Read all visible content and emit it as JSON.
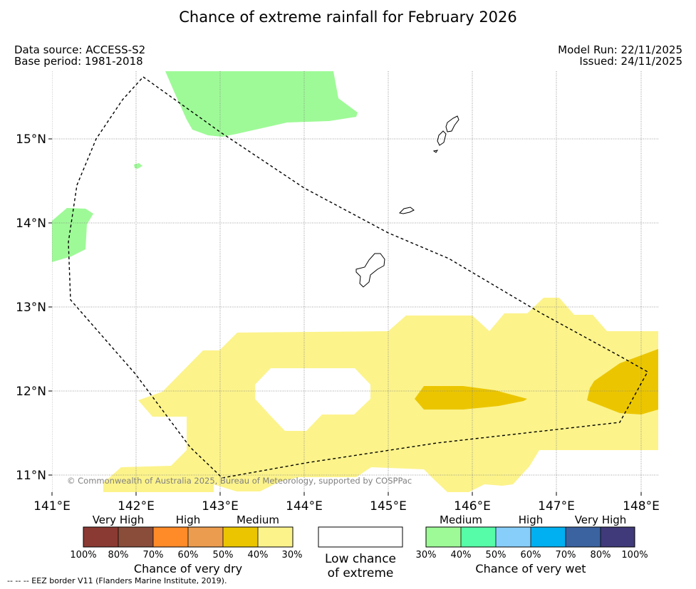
{
  "header": {
    "title": "Chance of extreme rainfall for February 2026",
    "data_source": "Data source: ACCESS-S2",
    "base_period": "Base period: 1981-2018",
    "model_run": "Model Run: 22/11/2025",
    "issued": "Issued: 24/11/2025"
  },
  "map": {
    "lon_ticks": [
      "141°E",
      "142°E",
      "143°E",
      "144°E",
      "145°E",
      "146°E",
      "147°E",
      "148°E"
    ],
    "lat_ticks": [
      "15°N",
      "14°N",
      "13°N",
      "12°N",
      "11°N"
    ],
    "copyright": "© Commonwealth of Australia 2025, Bureau of Meteorology, supported by COSPPac",
    "eez_note": "--  --  -- EEZ border V11 (Flanders Marine Institute, 2019).",
    "colors": {
      "wet_medium_30_40": "#9efa97",
      "dry_medium_30_40": "#fcf38b",
      "dry_medium_40_50": "#ebc600",
      "coastline": "#000000",
      "grid": "#808080"
    }
  },
  "legend": {
    "dry": {
      "headings": [
        "Very High",
        "High",
        "Medium"
      ],
      "colors": [
        "#8b3a33",
        "#8a4d3a",
        "#ff8a28",
        "#ec9c4e",
        "#ebc600",
        "#fcf38b"
      ],
      "ticks": [
        "100%",
        "80%",
        "70%",
        "60%",
        "50%",
        "40%",
        "30%"
      ],
      "caption": "Chance of very dry"
    },
    "low": {
      "caption_line1": "Low chance",
      "caption_line2": "of extreme"
    },
    "wet": {
      "headings": [
        "Medium",
        "High",
        "Very High"
      ],
      "colors": [
        "#9efa97",
        "#56fca7",
        "#87cefa",
        "#00b0f0",
        "#3a63a0",
        "#403a7a"
      ],
      "ticks": [
        "30%",
        "40%",
        "50%",
        "60%",
        "70%",
        "80%",
        "100%"
      ],
      "caption": "Chance of very wet"
    }
  }
}
